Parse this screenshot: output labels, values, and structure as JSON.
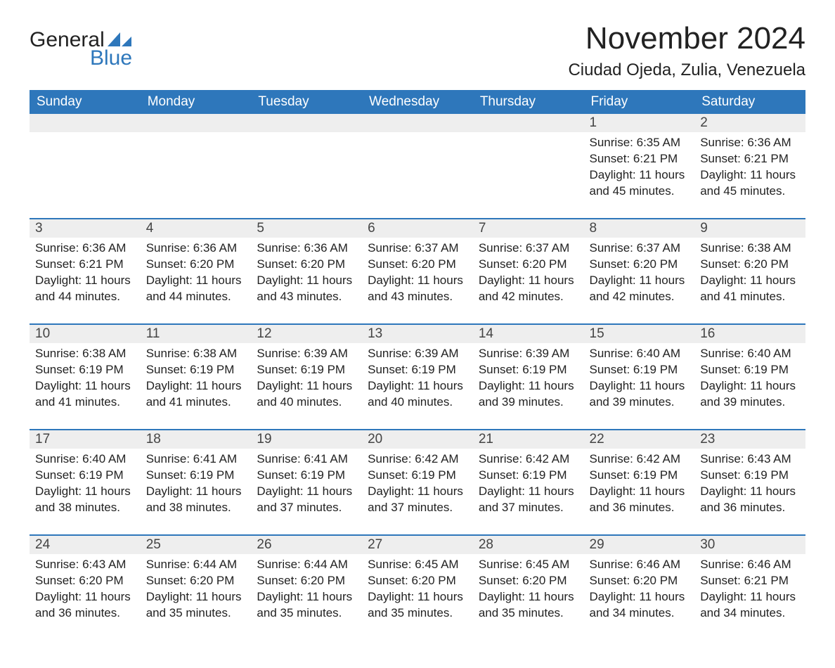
{
  "brand": {
    "word1": "General",
    "word2": "Blue",
    "accent_color": "#2e77bb"
  },
  "title": "November 2024",
  "location": "Ciudad Ojeda, Zulia, Venezuela",
  "colors": {
    "header_bg": "#2e77bb",
    "header_text": "#ffffff",
    "daynum_bg": "#eeeeee",
    "row_border": "#2e77bb",
    "text": "#222222",
    "background": "#ffffff"
  },
  "typography": {
    "title_fontsize": 44,
    "location_fontsize": 24,
    "header_fontsize": 19,
    "daynum_fontsize": 19,
    "body_fontsize": 17,
    "font_family": "Segoe UI"
  },
  "day_labels": [
    "Sunday",
    "Monday",
    "Tuesday",
    "Wednesday",
    "Thursday",
    "Friday",
    "Saturday"
  ],
  "weeks": [
    [
      {
        "empty": true
      },
      {
        "empty": true
      },
      {
        "empty": true
      },
      {
        "empty": true
      },
      {
        "empty": true
      },
      {
        "day": 1,
        "sunrise": "6:35 AM",
        "sunset": "6:21 PM",
        "daylight": "11 hours and 45 minutes."
      },
      {
        "day": 2,
        "sunrise": "6:36 AM",
        "sunset": "6:21 PM",
        "daylight": "11 hours and 45 minutes."
      }
    ],
    [
      {
        "day": 3,
        "sunrise": "6:36 AM",
        "sunset": "6:21 PM",
        "daylight": "11 hours and 44 minutes."
      },
      {
        "day": 4,
        "sunrise": "6:36 AM",
        "sunset": "6:20 PM",
        "daylight": "11 hours and 44 minutes."
      },
      {
        "day": 5,
        "sunrise": "6:36 AM",
        "sunset": "6:20 PM",
        "daylight": "11 hours and 43 minutes."
      },
      {
        "day": 6,
        "sunrise": "6:37 AM",
        "sunset": "6:20 PM",
        "daylight": "11 hours and 43 minutes."
      },
      {
        "day": 7,
        "sunrise": "6:37 AM",
        "sunset": "6:20 PM",
        "daylight": "11 hours and 42 minutes."
      },
      {
        "day": 8,
        "sunrise": "6:37 AM",
        "sunset": "6:20 PM",
        "daylight": "11 hours and 42 minutes."
      },
      {
        "day": 9,
        "sunrise": "6:38 AM",
        "sunset": "6:20 PM",
        "daylight": "11 hours and 41 minutes."
      }
    ],
    [
      {
        "day": 10,
        "sunrise": "6:38 AM",
        "sunset": "6:19 PM",
        "daylight": "11 hours and 41 minutes."
      },
      {
        "day": 11,
        "sunrise": "6:38 AM",
        "sunset": "6:19 PM",
        "daylight": "11 hours and 41 minutes."
      },
      {
        "day": 12,
        "sunrise": "6:39 AM",
        "sunset": "6:19 PM",
        "daylight": "11 hours and 40 minutes."
      },
      {
        "day": 13,
        "sunrise": "6:39 AM",
        "sunset": "6:19 PM",
        "daylight": "11 hours and 40 minutes."
      },
      {
        "day": 14,
        "sunrise": "6:39 AM",
        "sunset": "6:19 PM",
        "daylight": "11 hours and 39 minutes."
      },
      {
        "day": 15,
        "sunrise": "6:40 AM",
        "sunset": "6:19 PM",
        "daylight": "11 hours and 39 minutes."
      },
      {
        "day": 16,
        "sunrise": "6:40 AM",
        "sunset": "6:19 PM",
        "daylight": "11 hours and 39 minutes."
      }
    ],
    [
      {
        "day": 17,
        "sunrise": "6:40 AM",
        "sunset": "6:19 PM",
        "daylight": "11 hours and 38 minutes."
      },
      {
        "day": 18,
        "sunrise": "6:41 AM",
        "sunset": "6:19 PM",
        "daylight": "11 hours and 38 minutes."
      },
      {
        "day": 19,
        "sunrise": "6:41 AM",
        "sunset": "6:19 PM",
        "daylight": "11 hours and 37 minutes."
      },
      {
        "day": 20,
        "sunrise": "6:42 AM",
        "sunset": "6:19 PM",
        "daylight": "11 hours and 37 minutes."
      },
      {
        "day": 21,
        "sunrise": "6:42 AM",
        "sunset": "6:19 PM",
        "daylight": "11 hours and 37 minutes."
      },
      {
        "day": 22,
        "sunrise": "6:42 AM",
        "sunset": "6:19 PM",
        "daylight": "11 hours and 36 minutes."
      },
      {
        "day": 23,
        "sunrise": "6:43 AM",
        "sunset": "6:19 PM",
        "daylight": "11 hours and 36 minutes."
      }
    ],
    [
      {
        "day": 24,
        "sunrise": "6:43 AM",
        "sunset": "6:20 PM",
        "daylight": "11 hours and 36 minutes."
      },
      {
        "day": 25,
        "sunrise": "6:44 AM",
        "sunset": "6:20 PM",
        "daylight": "11 hours and 35 minutes."
      },
      {
        "day": 26,
        "sunrise": "6:44 AM",
        "sunset": "6:20 PM",
        "daylight": "11 hours and 35 minutes."
      },
      {
        "day": 27,
        "sunrise": "6:45 AM",
        "sunset": "6:20 PM",
        "daylight": "11 hours and 35 minutes."
      },
      {
        "day": 28,
        "sunrise": "6:45 AM",
        "sunset": "6:20 PM",
        "daylight": "11 hours and 35 minutes."
      },
      {
        "day": 29,
        "sunrise": "6:46 AM",
        "sunset": "6:20 PM",
        "daylight": "11 hours and 34 minutes."
      },
      {
        "day": 30,
        "sunrise": "6:46 AM",
        "sunset": "6:21 PM",
        "daylight": "11 hours and 34 minutes."
      }
    ]
  ],
  "labels": {
    "sunrise_prefix": "Sunrise: ",
    "sunset_prefix": "Sunset: ",
    "daylight_prefix": "Daylight: "
  }
}
